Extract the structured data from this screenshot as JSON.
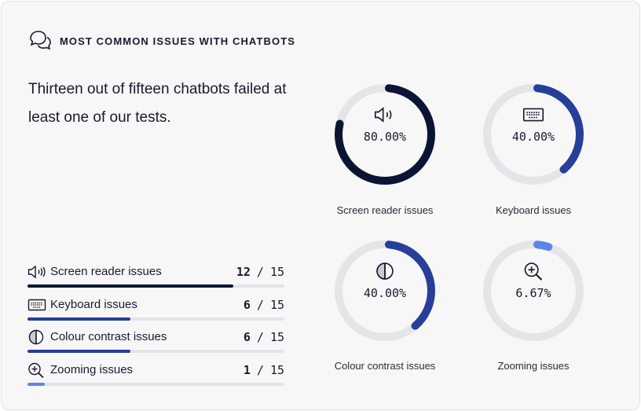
{
  "header": {
    "title": "MOST COMMON ISSUES WITH CHATBOTS",
    "icon": "chat-bubbles-icon"
  },
  "headline": "Thirteen out of fifteen chatbots failed at least one of our tests.",
  "issues": [
    {
      "label": "Screen reader issues",
      "count": "12",
      "total": "15",
      "icon": "speaker-icon",
      "color": "#0b1533",
      "fraction": 0.8
    },
    {
      "label": "Keyboard  issues",
      "count": "6",
      "total": "15",
      "icon": "keyboard-icon",
      "color": "#273f99",
      "fraction": 0.4
    },
    {
      "label": "Colour contrast issues",
      "count": "6",
      "total": "15",
      "icon": "contrast-icon",
      "color": "#273f99",
      "fraction": 0.4
    },
    {
      "label": "Zooming issues",
      "count": "1",
      "total": "15",
      "icon": "zoom-icon",
      "color": "#5b86e5",
      "fraction": 0.0667
    }
  ],
  "donuts": [
    {
      "value": "80.00%",
      "label": "Screen reader issues",
      "icon": "speaker-icon",
      "color": "#0b1533",
      "fraction": 0.8
    },
    {
      "value": "40.00%",
      "label": "Keyboard issues",
      "icon": "keyboard-icon",
      "color": "#273f99",
      "fraction": 0.4
    },
    {
      "value": "40.00%",
      "label": "Colour contrast issues",
      "icon": "contrast-icon",
      "color": "#273f99",
      "fraction": 0.4
    },
    {
      "value": "6.67%",
      "label": "Zooming issues",
      "icon": "zoom-icon",
      "color": "#5b86e5",
      "fraction": 0.0667
    }
  ],
  "track_color": "#e4e5e8"
}
